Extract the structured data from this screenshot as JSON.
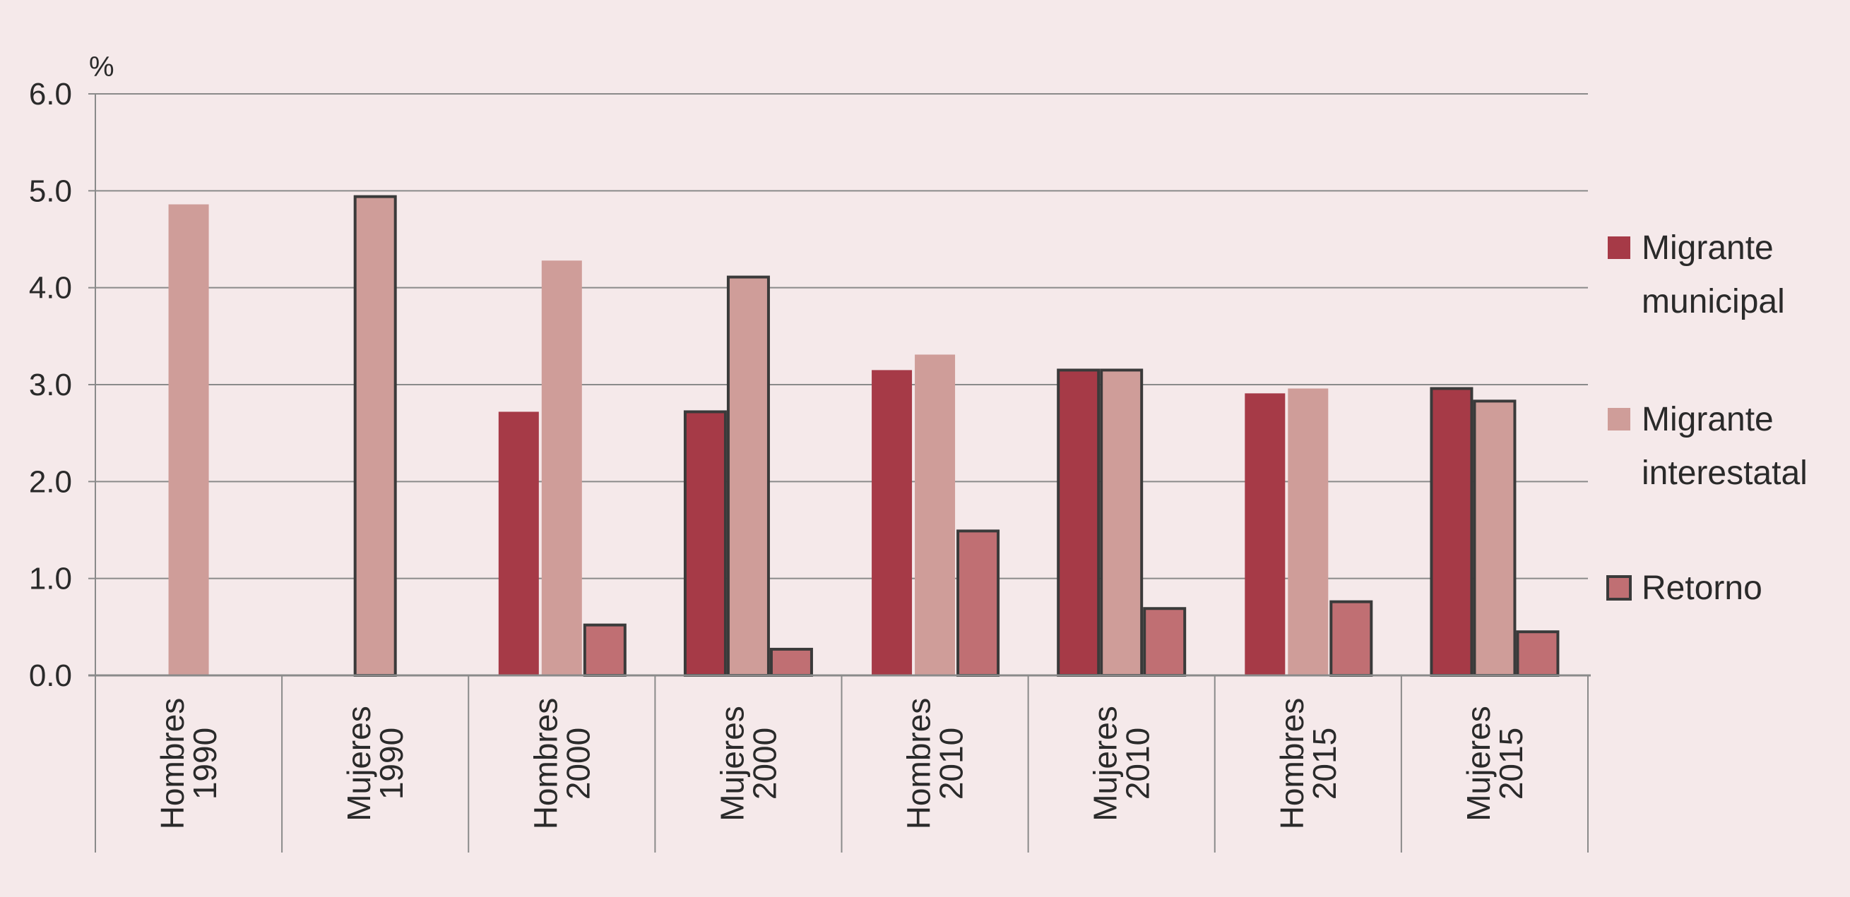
{
  "chart_data": {
    "type": "bar",
    "unit_label": "%",
    "ylim": [
      0,
      6
    ],
    "yticks": [
      "0.0",
      "1.0",
      "2.0",
      "3.0",
      "4.0",
      "5.0",
      "6.0"
    ],
    "grid": true,
    "legend_position": "right",
    "categories": [
      [
        "Hombres",
        "1990"
      ],
      [
        "Mujeres",
        "1990"
      ],
      [
        "Hombres",
        "2000"
      ],
      [
        "Mujeres",
        "2000"
      ],
      [
        "Hombres",
        "2010"
      ],
      [
        "Mujeres",
        "2010"
      ],
      [
        "Hombres",
        "2015"
      ],
      [
        "Mujeres",
        "2015"
      ]
    ],
    "series": [
      {
        "name": "Migrante municipal",
        "name_lines": [
          "Migrante",
          "municipal"
        ],
        "color": "#a63a47",
        "values": [
          0,
          0,
          2.72,
          2.72,
          3.15,
          3.15,
          2.91,
          2.96
        ]
      },
      {
        "name": "Migrante interestatal",
        "name_lines": [
          "Migrante",
          "interestatal"
        ],
        "color": "#cf9d99",
        "values": [
          4.86,
          4.94,
          4.28,
          4.11,
          3.31,
          3.15,
          2.96,
          2.83
        ]
      },
      {
        "name": "Retorno",
        "name_lines": [
          "Retorno"
        ],
        "color": "#c06f73",
        "values": [
          0,
          0,
          0.52,
          0.27,
          1.49,
          0.69,
          0.76,
          0.45
        ]
      }
    ],
    "outlined_categories": [
      false,
      true,
      false,
      true,
      false,
      true,
      false,
      true
    ],
    "outline_color": "#3a3a3a",
    "axis_color": "#8a8a8a"
  }
}
